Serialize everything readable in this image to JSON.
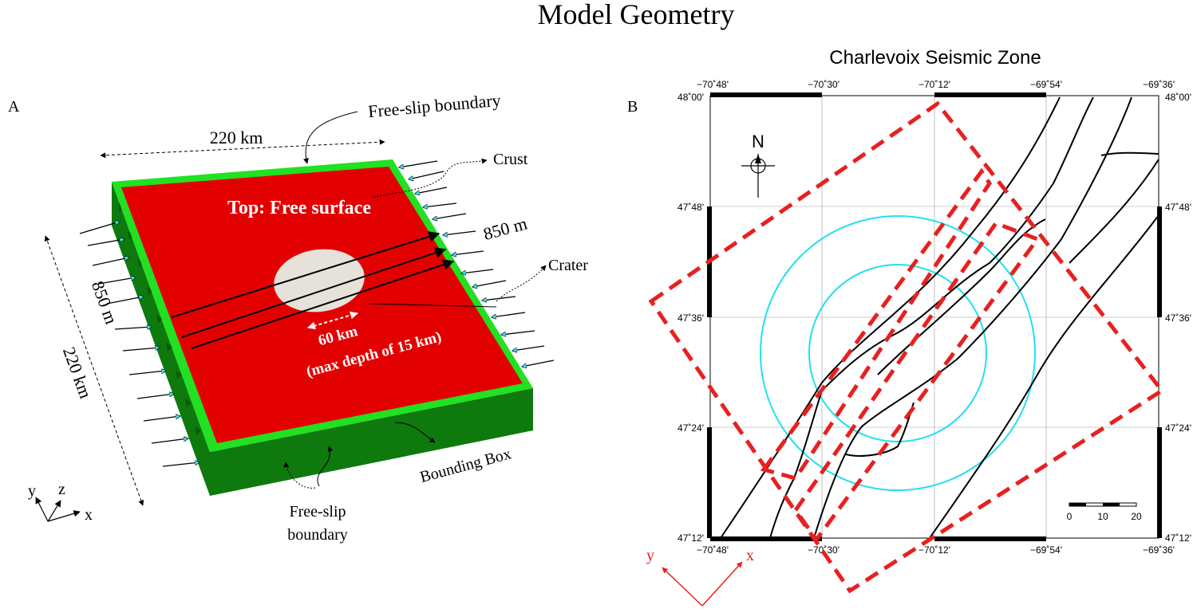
{
  "title": "Model Geometry",
  "panel_a": {
    "label": "A",
    "top_label": "Top: Free surface",
    "width_top": "220 km",
    "width_side": "220 km",
    "free_slip_top": "Free-slip boundary",
    "free_slip_bottom_1": "Free-slip",
    "free_slip_bottom_2": "boundary",
    "crust": "Crust",
    "crater": "Crater",
    "thickness_right": "850 m",
    "thickness_left": "850 m",
    "crater_width": "60 km",
    "crater_depth": "(max depth of 15 km)",
    "bounding_box": "Bounding Box",
    "axis_y": "y",
    "axis_z": "z",
    "axis_x": "x",
    "colors": {
      "top": "#e30000",
      "border": "#22e022",
      "side": "#0e7a0e",
      "crater": "#e6e1d9",
      "arrow": "#40e0f0"
    }
  },
  "panel_b": {
    "label": "B",
    "map_title": "Charlevoix Seismic Zone",
    "north": "N",
    "lon_ticks": [
      "−70˚48'",
      "−70˚30'",
      "−70˚12'",
      "−69˚54'",
      "−69˚36'"
    ],
    "lat_ticks": [
      "48˚00'",
      "47˚48'",
      "47˚36'",
      "47˚24'",
      "47˚12'"
    ],
    "scale": [
      "0",
      "10",
      "20"
    ],
    "axis_y": "y",
    "axis_x": "x",
    "colors": {
      "box": "#e82020",
      "circle": "#22e0f0",
      "fault": "#000000"
    }
  }
}
